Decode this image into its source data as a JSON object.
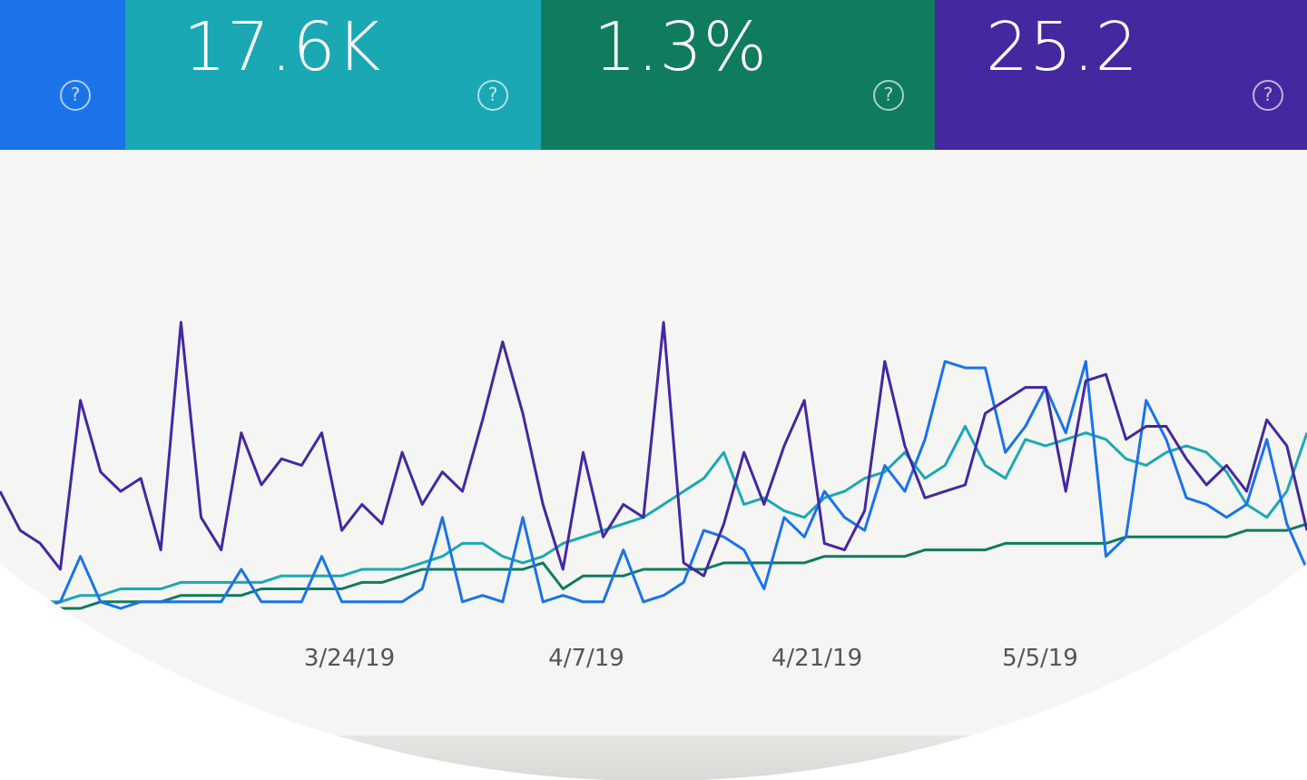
{
  "metric_cards": [
    {
      "value": "",
      "color": "#1a73e8"
    },
    {
      "value": "17.6K",
      "color": "#1aa8b4"
    },
    {
      "value": "1.3%",
      "color": "#0f7b5f"
    },
    {
      "value": "25.2",
      "color": "#4527a0"
    }
  ],
  "help_icon_glyph": "?",
  "chart_data": {
    "type": "line",
    "title": "",
    "xlabel": "",
    "ylabel": "",
    "x_tick_labels": [
      "3/24/19",
      "4/7/19",
      "4/21/19",
      "5/5/19"
    ],
    "grid": false,
    "legend": "none",
    "series": [
      {
        "color": "#4527a0",
        "values": [
          18,
          12,
          10,
          6,
          32,
          21,
          18,
          20,
          9,
          44,
          14,
          9,
          27,
          19,
          23,
          22,
          27,
          12,
          16,
          13,
          24,
          16,
          21,
          18,
          29,
          41,
          30,
          16,
          6,
          24,
          11,
          16,
          14,
          44,
          7,
          5,
          13,
          24,
          16,
          25,
          32,
          10,
          9,
          15,
          38,
          25,
          17,
          18,
          19,
          30,
          32,
          34,
          34,
          18,
          35,
          36,
          26,
          28,
          28,
          23,
          19,
          22,
          18,
          29,
          25,
          12
        ]
      },
      {
        "color": "#1a73e8",
        "values": [
          0,
          0,
          0,
          1,
          8,
          1,
          0,
          1,
          1,
          1,
          1,
          1,
          6,
          1,
          1,
          1,
          8,
          1,
          1,
          1,
          1,
          3,
          14,
          1,
          2,
          1,
          14,
          1,
          2,
          1,
          1,
          9,
          1,
          2,
          4,
          12,
          11,
          9,
          3,
          14,
          11,
          18,
          14,
          12,
          22,
          18,
          26,
          38,
          37,
          37,
          24,
          28,
          34,
          27,
          38,
          8,
          11,
          32,
          26,
          17,
          16,
          14,
          16,
          26,
          13,
          6
        ]
      },
      {
        "color": "#1aa8b4",
        "values": [
          0,
          0,
          1,
          1,
          2,
          2,
          3,
          3,
          3,
          4,
          4,
          4,
          4,
          4,
          5,
          5,
          5,
          5,
          6,
          6,
          6,
          7,
          8,
          10,
          10,
          8,
          7,
          8,
          10,
          11,
          12,
          13,
          14,
          16,
          18,
          20,
          24,
          16,
          17,
          15,
          14,
          17,
          18,
          20,
          21,
          24,
          20,
          22,
          28,
          22,
          20,
          26,
          25,
          26,
          27,
          26,
          23,
          22,
          24,
          25,
          24,
          21,
          16,
          14,
          18,
          27
        ]
      },
      {
        "color": "#0f7b5f",
        "values": [
          0,
          0,
          0,
          0,
          0,
          1,
          1,
          1,
          1,
          2,
          2,
          2,
          2,
          3,
          3,
          3,
          3,
          3,
          4,
          4,
          5,
          6,
          6,
          6,
          6,
          6,
          6,
          7,
          3,
          5,
          5,
          5,
          6,
          6,
          6,
          6,
          7,
          7,
          7,
          7,
          7,
          8,
          8,
          8,
          8,
          8,
          9,
          9,
          9,
          9,
          10,
          10,
          10,
          10,
          10,
          10,
          11,
          11,
          11,
          11,
          11,
          11,
          12,
          12,
          12,
          13
        ]
      }
    ]
  }
}
